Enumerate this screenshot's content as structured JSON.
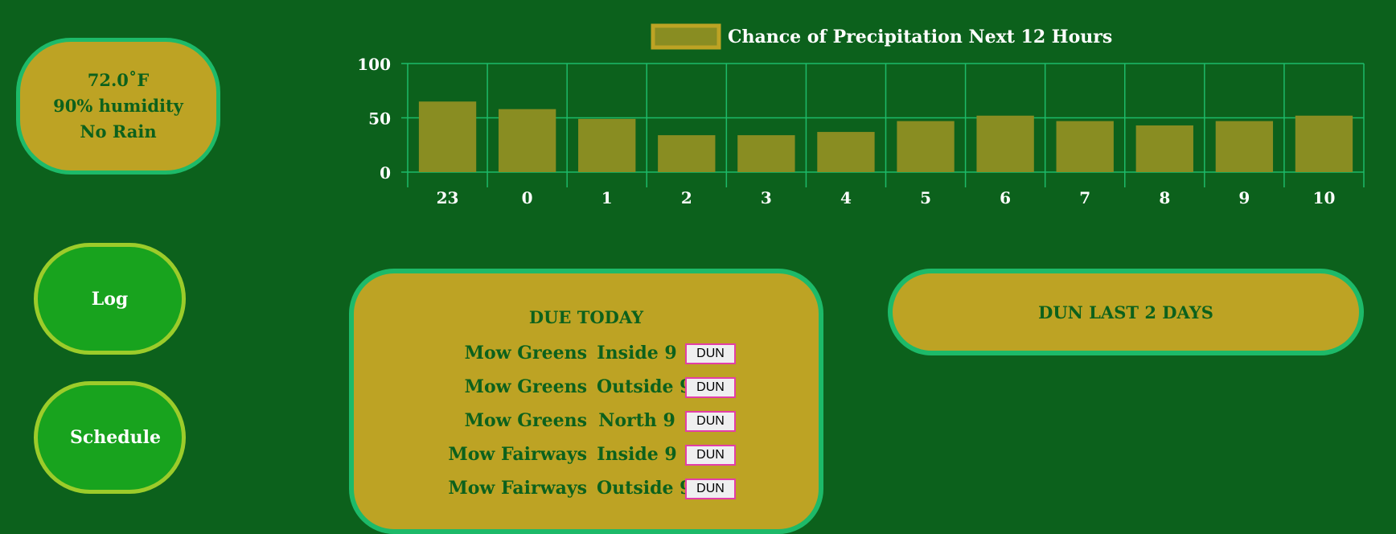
{
  "weather": {
    "temperature": "72.0˚F",
    "humidity": "90% humidity",
    "rain": "No Rain"
  },
  "nav": {
    "log_label": "Log",
    "schedule_label": "Schedule"
  },
  "chart_data": {
    "type": "bar",
    "title": "Chance of Precipitation Next 12 Hours",
    "categories": [
      "23",
      "0",
      "1",
      "2",
      "3",
      "4",
      "5",
      "6",
      "7",
      "8",
      "9",
      "10"
    ],
    "series": [
      {
        "name": "Chance of Precipitation Next 12 Hours",
        "values": [
          65,
          58,
          49,
          34,
          34,
          37,
          47,
          52,
          47,
          43,
          47,
          52
        ]
      }
    ],
    "y_ticks": [
      0,
      50,
      100
    ],
    "ylim": [
      0,
      100
    ],
    "xlabel": "",
    "ylabel": "",
    "grid": true,
    "legend_position": "top-center",
    "colors": {
      "bar_fill": "#898d22",
      "legend_fill": "#898d22",
      "legend_border": "#bda324",
      "grid": "#1dba69"
    }
  },
  "due_today": {
    "title": "DUE TODAY",
    "button_label": "DUN",
    "tasks": [
      {
        "name": "Mow Greens",
        "area": "Inside 9"
      },
      {
        "name": "Mow Greens",
        "area": "Outside 9"
      },
      {
        "name": "Mow Greens",
        "area": "North 9"
      },
      {
        "name": "Mow Fairways",
        "area": "Inside 9"
      },
      {
        "name": "Mow Fairways",
        "area": "Outside 9"
      }
    ]
  },
  "done_recent": {
    "title": "DUN LAST 2 DAYS"
  },
  "colors": {
    "background": "#0c611c",
    "card": "#bda324",
    "card_border": "#1dba69",
    "nav_button": "#18a31e",
    "nav_button_border": "#9ccc2a",
    "dun_border": "#e33ea7"
  }
}
